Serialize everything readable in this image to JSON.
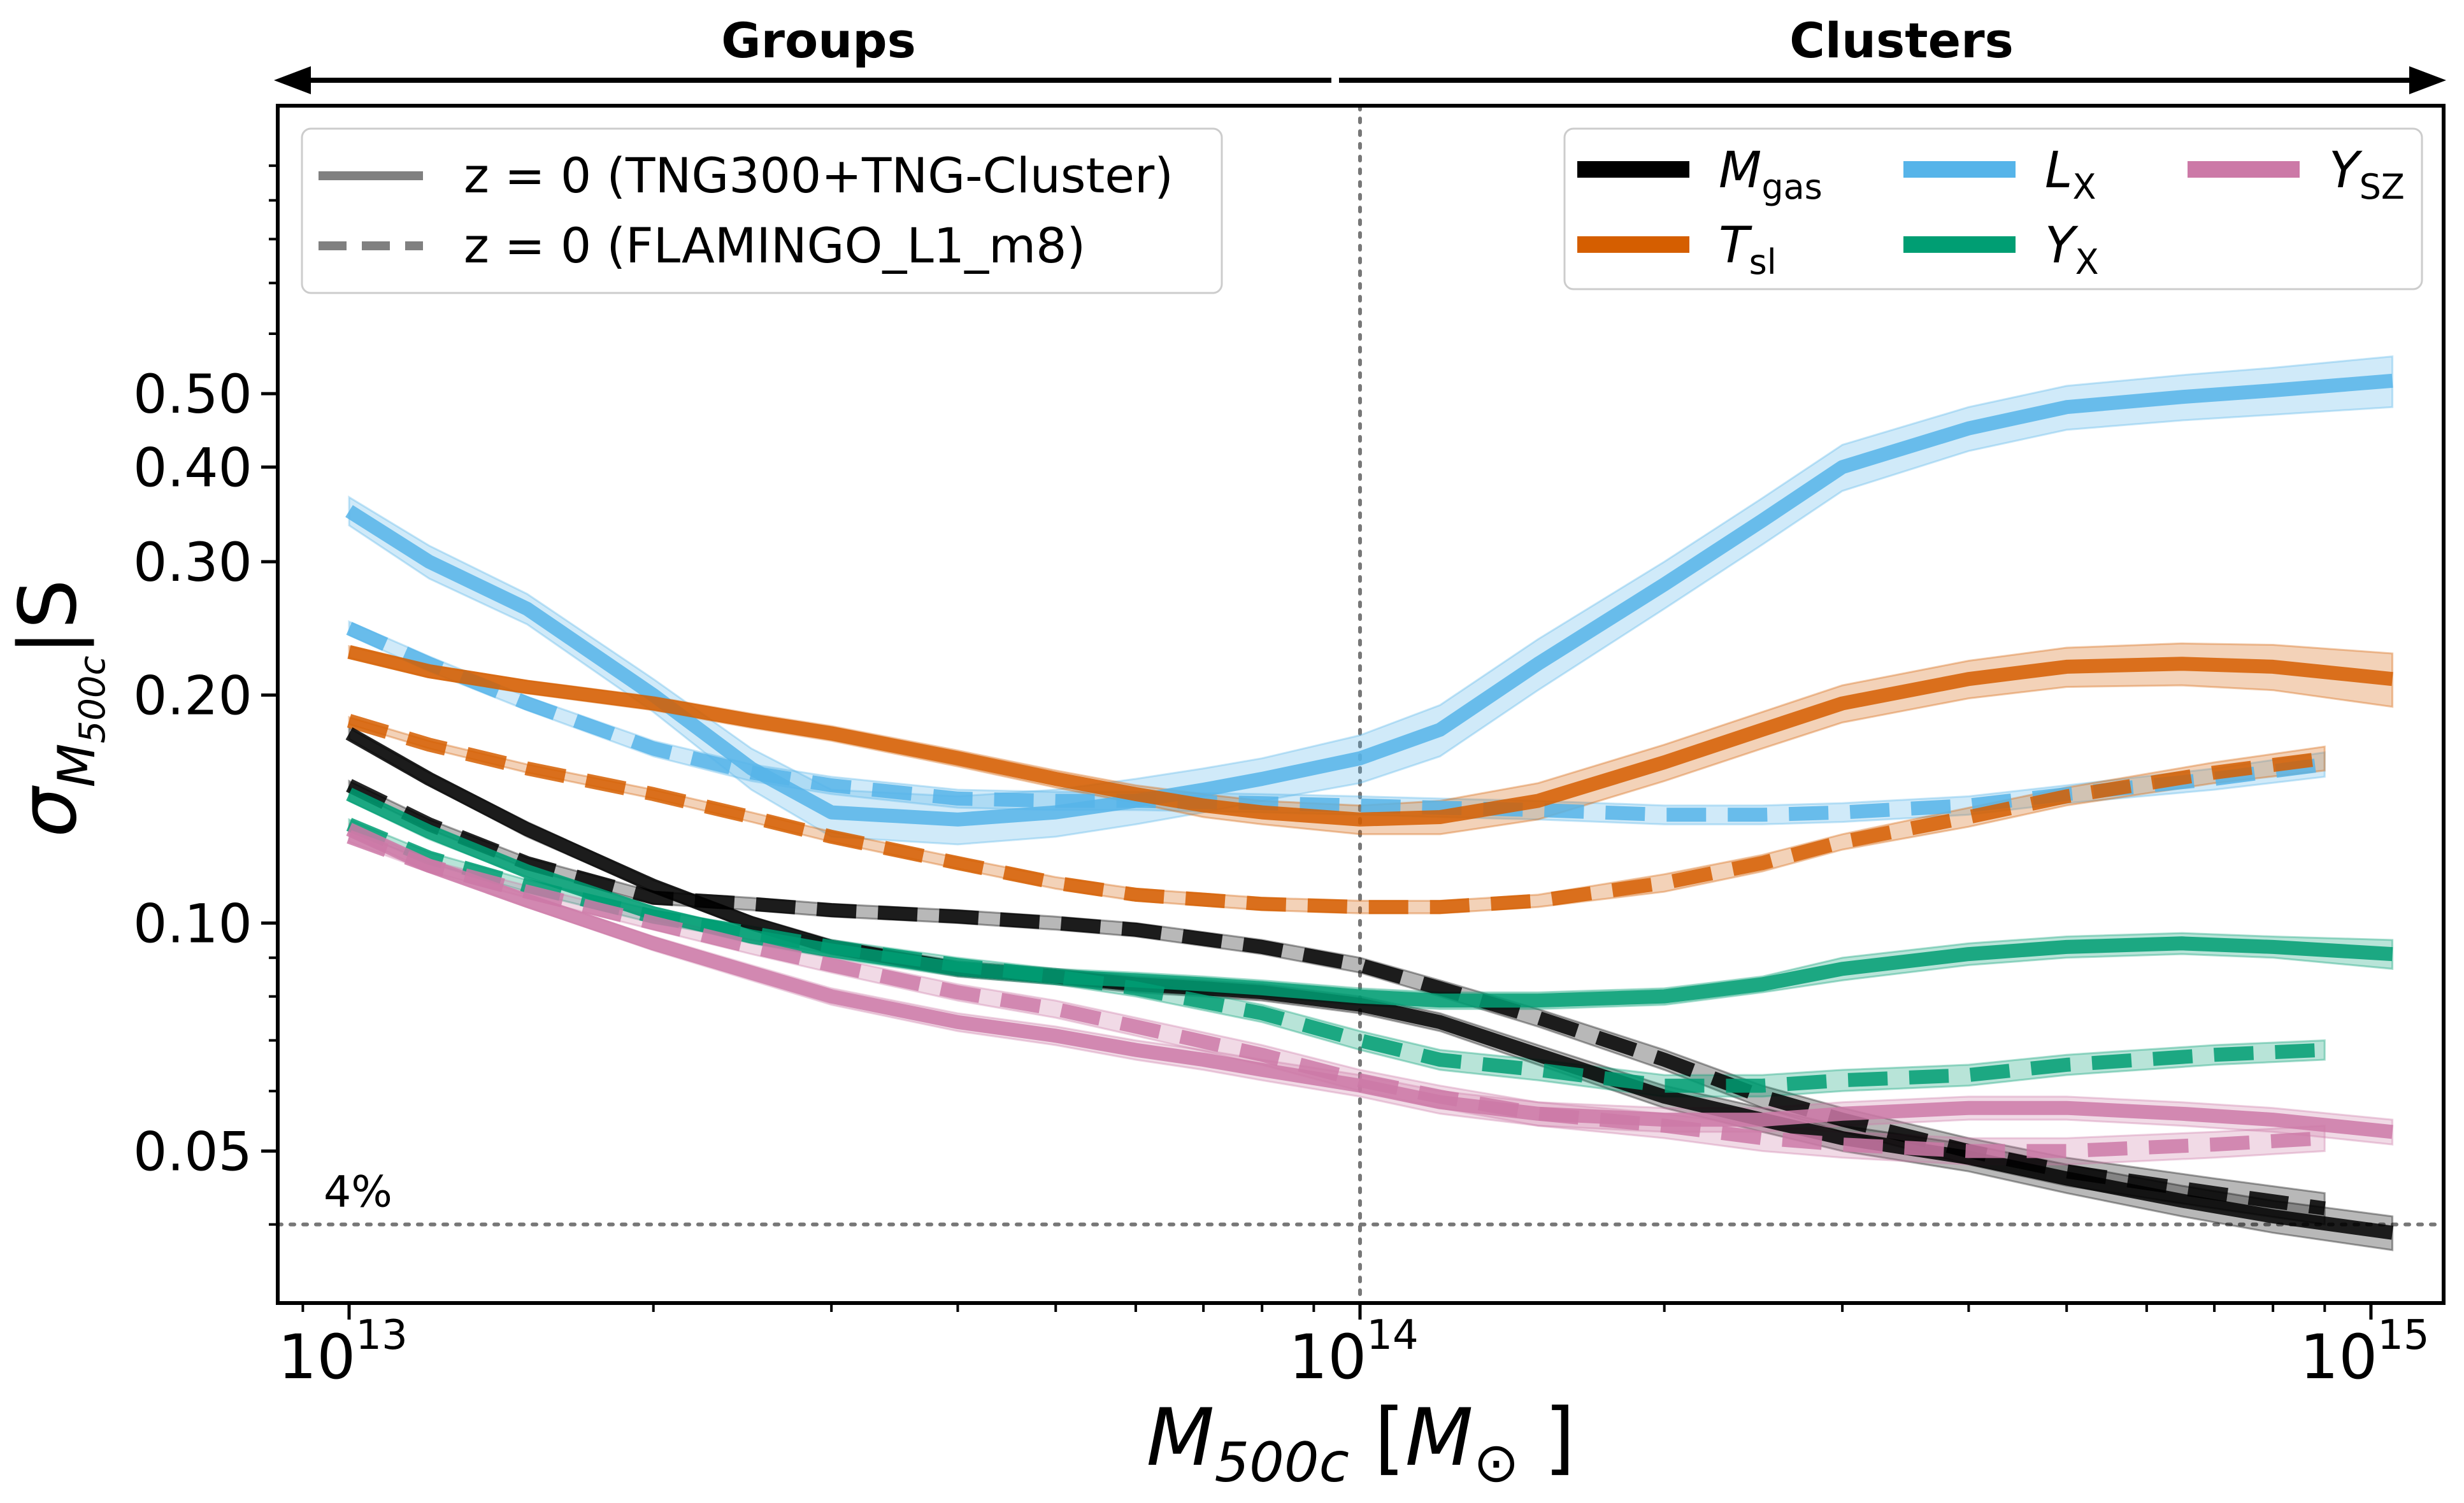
{
  "chart_data": {
    "type": "line",
    "x_scale": "log",
    "y_scale": "log",
    "xlim": [
      8500000000000.0,
      1180000000000000.0
    ],
    "ylim": [
      0.0315,
      1.2
    ],
    "xlabel": "M_500c [M_⊙]",
    "ylabel": "σ_{M_500c|S}",
    "top_annotations": {
      "left_label": "Groups",
      "right_label": "Clusters"
    },
    "x_ticks": [
      {
        "value": 10000000000000.0,
        "base": "10",
        "exp": "13"
      },
      {
        "value": 100000000000000.0,
        "base": "10",
        "exp": "14"
      },
      {
        "value": 1000000000000000.0,
        "base": "10",
        "exp": "15"
      }
    ],
    "y_ticks": [
      {
        "value": 0.05,
        "label": "0.05"
      },
      {
        "value": 0.1,
        "label": "0.10"
      },
      {
        "value": 0.2,
        "label": "0.20"
      },
      {
        "value": 0.3,
        "label": "0.30"
      },
      {
        "value": 0.4,
        "label": "0.40"
      },
      {
        "value": 0.5,
        "label": "0.50"
      }
    ],
    "reference_lines": [
      {
        "axis": "x",
        "value": 100000000000000.0,
        "style": "dotted"
      },
      {
        "axis": "y",
        "value": 0.04,
        "style": "dotted",
        "label": "4%"
      }
    ],
    "style_legend": [
      {
        "label": "z = 0 (TNG300+TNG-Cluster)",
        "dash": "solid"
      },
      {
        "label": "z = 0 (FLAMINGO_L1_m8)",
        "dash": "dashed"
      }
    ],
    "series_legend": [
      {
        "main": "M",
        "sub": "gas",
        "color": "#000000"
      },
      {
        "main": "T",
        "sub": "sl",
        "color": "#d55e00"
      },
      {
        "main": "L",
        "sub": "X",
        "color": "#56b4e9"
      },
      {
        "main": "Y",
        "sub": "X",
        "color": "#009e73"
      },
      {
        "main": "Y",
        "sub": "SZ",
        "color": "#cc79a7"
      }
    ],
    "series": [
      {
        "key": "L_X",
        "dataset": "TNG300+TNG-Cluster",
        "dash": "solid",
        "color": "#56b4e9",
        "x": [
          10000000000000.0,
          12000000000000.0,
          15000000000000.0,
          20000000000000.0,
          25000000000000.0,
          30000000000000.0,
          40000000000000.0,
          50000000000000.0,
          60000000000000.0,
          70000000000000.0,
          80000000000000.0,
          100000000000000.0,
          120000000000000.0,
          150000000000000.0,
          200000000000000.0,
          250000000000000.0,
          300000000000000.0,
          400000000000000.0,
          500000000000000.0,
          650000000000000.0,
          800000000000000.0,
          1050000000000000.0
        ],
        "y": [
          0.35,
          0.3,
          0.26,
          0.2,
          0.16,
          0.14,
          0.137,
          0.14,
          0.145,
          0.15,
          0.155,
          0.165,
          0.18,
          0.22,
          0.28,
          0.34,
          0.4,
          0.45,
          0.48,
          0.495,
          0.505,
          0.52
        ],
        "band": [
          0.015,
          0.015,
          0.012,
          0.01,
          0.01,
          0.01,
          0.01,
          0.01,
          0.01,
          0.01,
          0.01,
          0.012,
          0.014,
          0.017,
          0.02,
          0.024,
          0.028,
          0.03,
          0.032,
          0.034,
          0.036,
          0.04
        ]
      },
      {
        "key": "L_X",
        "dataset": "FLAMINGO_L1_m8",
        "dash": "dashed",
        "color": "#56b4e9",
        "x": [
          10000000000000.0,
          12000000000000.0,
          15000000000000.0,
          20000000000000.0,
          25000000000000.0,
          30000000000000.0,
          40000000000000.0,
          50000000000000.0,
          60000000000000.0,
          80000000000000.0,
          100000000000000.0,
          120000000000000.0,
          150000000000000.0,
          200000000000000.0,
          250000000000000.0,
          300000000000000.0,
          400000000000000.0,
          500000000000000.0,
          700000000000000.0,
          900000000000000.0
        ],
        "y": [
          0.245,
          0.22,
          0.195,
          0.17,
          0.158,
          0.152,
          0.146,
          0.145,
          0.145,
          0.144,
          0.143,
          0.142,
          0.141,
          0.139,
          0.139,
          0.14,
          0.143,
          0.148,
          0.155,
          0.162
        ],
        "band": [
          0.005,
          0.005,
          0.004,
          0.004,
          0.004,
          0.004,
          0.004,
          0.004,
          0.004,
          0.004,
          0.004,
          0.004,
          0.004,
          0.004,
          0.004,
          0.004,
          0.004,
          0.004,
          0.005,
          0.006
        ]
      },
      {
        "key": "T_sl",
        "dataset": "TNG300+TNG-Cluster",
        "dash": "solid",
        "color": "#d55e00",
        "x": [
          10000000000000.0,
          12000000000000.0,
          15000000000000.0,
          20000000000000.0,
          25000000000000.0,
          30000000000000.0,
          40000000000000.0,
          50000000000000.0,
          60000000000000.0,
          70000000000000.0,
          80000000000000.0,
          100000000000000.0,
          120000000000000.0,
          150000000000000.0,
          200000000000000.0,
          250000000000000.0,
          300000000000000.0,
          400000000000000.0,
          500000000000000.0,
          650000000000000.0,
          800000000000000.0,
          1050000000000000.0
        ],
        "y": [
          0.228,
          0.215,
          0.205,
          0.195,
          0.185,
          0.178,
          0.165,
          0.155,
          0.148,
          0.143,
          0.14,
          0.137,
          0.138,
          0.145,
          0.163,
          0.18,
          0.195,
          0.21,
          0.218,
          0.22,
          0.218,
          0.21
        ],
        "band": [
          0.004,
          0.004,
          0.004,
          0.004,
          0.004,
          0.004,
          0.004,
          0.004,
          0.004,
          0.005,
          0.005,
          0.006,
          0.007,
          0.008,
          0.009,
          0.01,
          0.011,
          0.012,
          0.013,
          0.014,
          0.015,
          0.017
        ]
      },
      {
        "key": "T_sl",
        "dataset": "FLAMINGO_L1_m8",
        "dash": "dashed",
        "color": "#d55e00",
        "x": [
          10000000000000.0,
          12000000000000.0,
          15000000000000.0,
          20000000000000.0,
          25000000000000.0,
          30000000000000.0,
          40000000000000.0,
          50000000000000.0,
          60000000000000.0,
          80000000000000.0,
          100000000000000.0,
          120000000000000.0,
          150000000000000.0,
          200000000000000.0,
          250000000000000.0,
          300000000000000.0,
          400000000000000.0,
          500000000000000.0,
          700000000000000.0,
          900000000000000.0
        ],
        "y": [
          0.185,
          0.172,
          0.16,
          0.148,
          0.138,
          0.13,
          0.12,
          0.113,
          0.109,
          0.106,
          0.105,
          0.105,
          0.107,
          0.113,
          0.12,
          0.128,
          0.138,
          0.147,
          0.158,
          0.165
        ],
        "band": [
          0.002,
          0.002,
          0.002,
          0.002,
          0.002,
          0.002,
          0.002,
          0.002,
          0.002,
          0.002,
          0.002,
          0.002,
          0.002,
          0.003,
          0.003,
          0.003,
          0.004,
          0.004,
          0.005,
          0.006
        ]
      },
      {
        "key": "M_gas",
        "dataset": "TNG300+TNG-Cluster",
        "dash": "solid",
        "color": "#000000",
        "x": [
          10000000000000.0,
          12000000000000.0,
          15000000000000.0,
          20000000000000.0,
          25000000000000.0,
          30000000000000.0,
          40000000000000.0,
          50000000000000.0,
          60000000000000.0,
          70000000000000.0,
          80000000000000.0,
          100000000000000.0,
          120000000000000.0,
          150000000000000.0,
          200000000000000.0,
          250000000000000.0,
          300000000000000.0,
          400000000000000.0,
          500000000000000.0,
          650000000000000.0,
          800000000000000.0,
          1050000000000000.0
        ],
        "y": [
          0.178,
          0.155,
          0.133,
          0.112,
          0.1,
          0.093,
          0.087,
          0.085,
          0.083,
          0.082,
          0.081,
          0.078,
          0.074,
          0.067,
          0.059,
          0.055,
          0.052,
          0.049,
          0.046,
          0.043,
          0.041,
          0.039
        ],
        "band": [
          0.003,
          0.003,
          0.003,
          0.002,
          0.002,
          0.002,
          0.002,
          0.002,
          0.002,
          0.002,
          0.002,
          0.002,
          0.002,
          0.002,
          0.002,
          0.002,
          0.002,
          0.002,
          0.002,
          0.002,
          0.002,
          0.002
        ]
      },
      {
        "key": "M_gas",
        "dataset": "FLAMINGO_L1_m8",
        "dash": "dashed",
        "color": "#000000",
        "x": [
          10000000000000.0,
          12000000000000.0,
          15000000000000.0,
          20000000000000.0,
          25000000000000.0,
          30000000000000.0,
          40000000000000.0,
          50000000000000.0,
          60000000000000.0,
          80000000000000.0,
          100000000000000.0,
          120000000000000.0,
          150000000000000.0,
          200000000000000.0,
          250000000000000.0,
          300000000000000.0,
          400000000000000.0,
          500000000000000.0,
          700000000000000.0,
          900000000000000.0
        ],
        "y": [
          0.152,
          0.135,
          0.12,
          0.108,
          0.106,
          0.104,
          0.102,
          0.1,
          0.098,
          0.093,
          0.088,
          0.082,
          0.075,
          0.066,
          0.059,
          0.055,
          0.05,
          0.047,
          0.044,
          0.042
        ],
        "band": [
          0.002,
          0.002,
          0.002,
          0.002,
          0.002,
          0.002,
          0.002,
          0.002,
          0.002,
          0.002,
          0.002,
          0.002,
          0.002,
          0.002,
          0.002,
          0.002,
          0.002,
          0.002,
          0.002,
          0.002
        ]
      },
      {
        "key": "Y_X",
        "dataset": "TNG300+TNG-Cluster",
        "dash": "solid",
        "color": "#009e73",
        "x": [
          10000000000000.0,
          12000000000000.0,
          15000000000000.0,
          20000000000000.0,
          25000000000000.0,
          30000000000000.0,
          40000000000000.0,
          50000000000000.0,
          60000000000000.0,
          70000000000000.0,
          80000000000000.0,
          100000000000000.0,
          120000000000000.0,
          150000000000000.0,
          200000000000000.0,
          250000000000000.0,
          300000000000000.0,
          400000000000000.0,
          500000000000000.0,
          650000000000000.0,
          800000000000000.0,
          1050000000000000.0
        ],
        "y": [
          0.148,
          0.132,
          0.117,
          0.103,
          0.096,
          0.092,
          0.087,
          0.085,
          0.084,
          0.083,
          0.082,
          0.08,
          0.079,
          0.079,
          0.08,
          0.083,
          0.087,
          0.091,
          0.093,
          0.094,
          0.093,
          0.091
        ],
        "band": [
          0.003,
          0.003,
          0.002,
          0.002,
          0.002,
          0.002,
          0.002,
          0.002,
          0.002,
          0.002,
          0.002,
          0.002,
          0.002,
          0.002,
          0.002,
          0.002,
          0.003,
          0.003,
          0.003,
          0.003,
          0.003,
          0.004
        ]
      },
      {
        "key": "Y_X",
        "dataset": "FLAMINGO_L1_m8",
        "dash": "dashed",
        "color": "#009e73",
        "x": [
          10000000000000.0,
          12000000000000.0,
          15000000000000.0,
          20000000000000.0,
          25000000000000.0,
          30000000000000.0,
          40000000000000.0,
          50000000000000.0,
          60000000000000.0,
          80000000000000.0,
          100000000000000.0,
          120000000000000.0,
          150000000000000.0,
          200000000000000.0,
          250000000000000.0,
          300000000000000.0,
          400000000000000.0,
          500000000000000.0,
          700000000000000.0,
          900000000000000.0
        ],
        "y": [
          0.135,
          0.122,
          0.112,
          0.102,
          0.097,
          0.093,
          0.088,
          0.085,
          0.082,
          0.076,
          0.07,
          0.066,
          0.064,
          0.061,
          0.061,
          0.062,
          0.063,
          0.065,
          0.067,
          0.068
        ],
        "band": [
          0.002,
          0.002,
          0.002,
          0.002,
          0.002,
          0.002,
          0.002,
          0.002,
          0.002,
          0.002,
          0.002,
          0.002,
          0.002,
          0.002,
          0.002,
          0.002,
          0.002,
          0.002,
          0.002,
          0.002
        ]
      },
      {
        "key": "Y_SZ",
        "dataset": "TNG300+TNG-Cluster",
        "dash": "solid",
        "color": "#cc79a7",
        "x": [
          10000000000000.0,
          12000000000000.0,
          15000000000000.0,
          20000000000000.0,
          25000000000000.0,
          30000000000000.0,
          40000000000000.0,
          50000000000000.0,
          60000000000000.0,
          70000000000000.0,
          80000000000000.0,
          100000000000000.0,
          120000000000000.0,
          150000000000000.0,
          200000000000000.0,
          250000000000000.0,
          300000000000000.0,
          400000000000000.0,
          500000000000000.0,
          650000000000000.0,
          800000000000000.0,
          1050000000000000.0
        ],
        "y": [
          0.133,
          0.119,
          0.107,
          0.094,
          0.086,
          0.08,
          0.074,
          0.071,
          0.068,
          0.066,
          0.064,
          0.061,
          0.058,
          0.056,
          0.055,
          0.055,
          0.056,
          0.057,
          0.057,
          0.056,
          0.055,
          0.053
        ],
        "band": [
          0.002,
          0.002,
          0.002,
          0.002,
          0.002,
          0.002,
          0.002,
          0.002,
          0.002,
          0.002,
          0.002,
          0.002,
          0.002,
          0.002,
          0.002,
          0.002,
          0.002,
          0.002,
          0.002,
          0.002,
          0.002,
          0.002
        ]
      },
      {
        "key": "Y_SZ",
        "dataset": "FLAMINGO_L1_m8",
        "dash": "dashed",
        "color": "#cc79a7",
        "x": [
          10000000000000.0,
          12000000000000.0,
          15000000000000.0,
          20000000000000.0,
          25000000000000.0,
          30000000000000.0,
          40000000000000.0,
          50000000000000.0,
          60000000000000.0,
          80000000000000.0,
          100000000000000.0,
          120000000000000.0,
          150000000000000.0,
          200000000000000.0,
          250000000000000.0,
          300000000000000.0,
          400000000000000.0,
          500000000000000.0,
          700000000000000.0,
          900000000000000.0
        ],
        "y": [
          0.13,
          0.119,
          0.11,
          0.1,
          0.093,
          0.088,
          0.081,
          0.077,
          0.073,
          0.067,
          0.062,
          0.059,
          0.056,
          0.054,
          0.052,
          0.051,
          0.05,
          0.05,
          0.051,
          0.052
        ],
        "band": [
          0.002,
          0.002,
          0.002,
          0.002,
          0.002,
          0.002,
          0.002,
          0.002,
          0.002,
          0.002,
          0.002,
          0.002,
          0.002,
          0.002,
          0.002,
          0.002,
          0.002,
          0.002,
          0.002,
          0.002
        ]
      }
    ]
  }
}
